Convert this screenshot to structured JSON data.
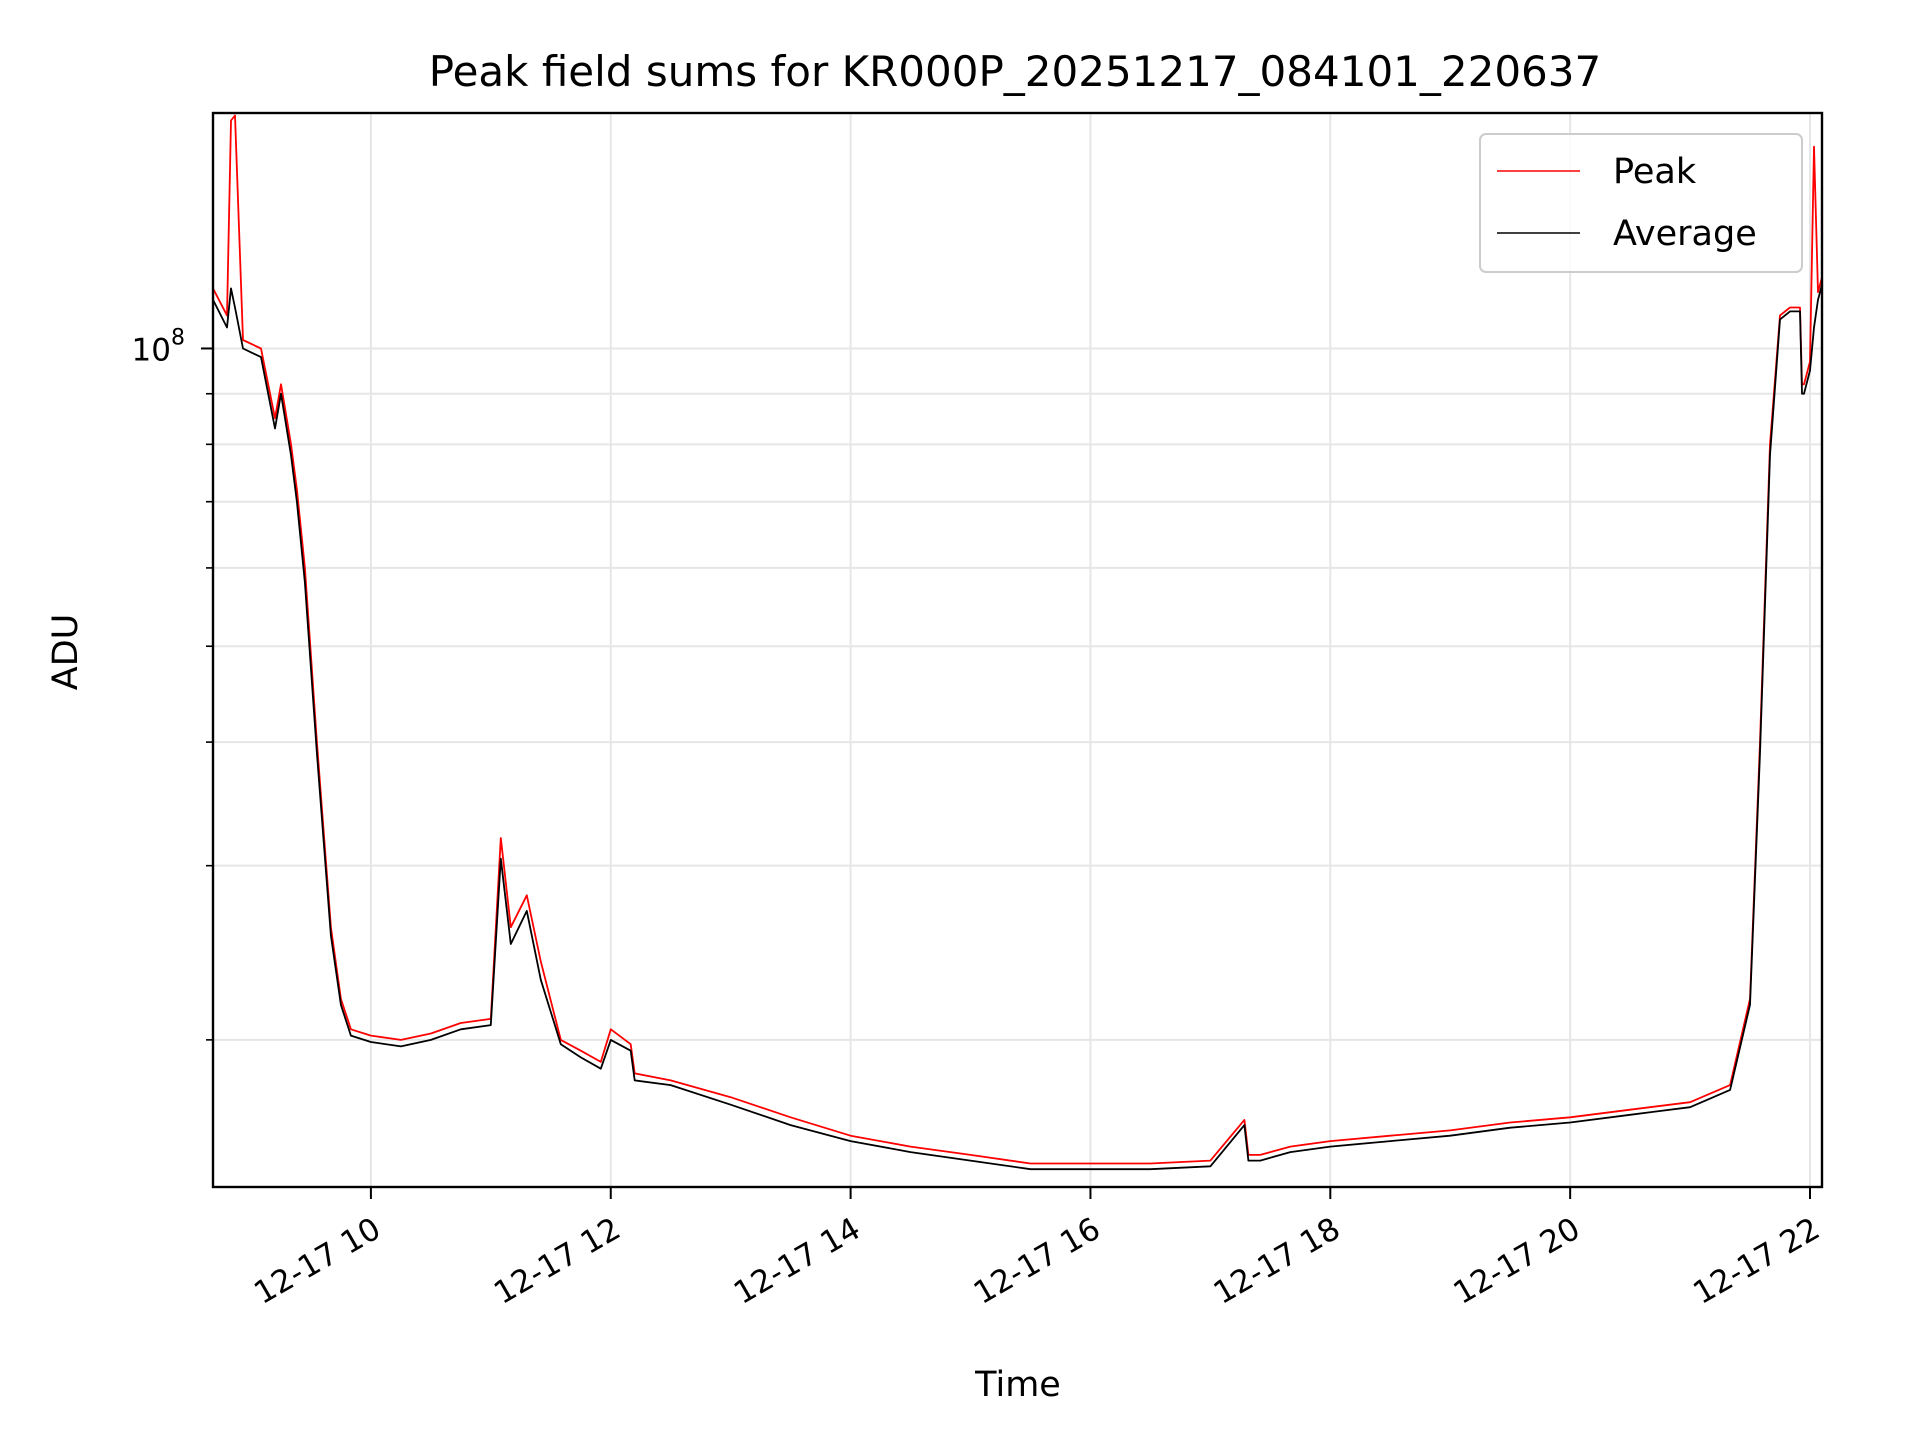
{
  "chart_data": {
    "type": "line",
    "title": "Peak field sums for KR000P_20251217_084101_220637",
    "xlabel": "Time",
    "ylabel": "ADU",
    "y_scale": "log",
    "grid": true,
    "legend_position": "top-right",
    "xlim": [
      "2025-12-17 08:41",
      "2025-12-17 22:06"
    ],
    "ylim": [
      14200000.0,
      173000000.0
    ],
    "x_ticks": [
      "2025-12-17 10:00",
      "2025-12-17 12:00",
      "2025-12-17 14:00",
      "2025-12-17 16:00",
      "2025-12-17 18:00",
      "2025-12-17 20:00",
      "2025-12-17 22:00"
    ],
    "x_tick_labels": [
      "12-17 10",
      "12-17 12",
      "12-17 14",
      "12-17 16",
      "12-17 18",
      "12-17 20",
      "12-17 22"
    ],
    "y_ticks": [
      100000000
    ],
    "y_tick_base": "10",
    "y_tick_exp": "8",
    "y_minor_ticks": [
      20000000,
      30000000,
      40000000,
      50000000,
      60000000,
      70000000,
      80000000,
      90000000
    ],
    "series": [
      {
        "name": "Peak",
        "color": "#ff0000",
        "x": [
          "2025-12-17 08:41",
          "2025-12-17 08:48",
          "2025-12-17 08:50",
          "2025-12-17 08:52",
          "2025-12-17 08:56",
          "2025-12-17 09:05",
          "2025-12-17 09:12",
          "2025-12-17 09:15",
          "2025-12-17 09:20",
          "2025-12-17 09:23",
          "2025-12-17 09:27",
          "2025-12-17 09:33",
          "2025-12-17 09:40",
          "2025-12-17 09:45",
          "2025-12-17 09:50",
          "2025-12-17 10:00",
          "2025-12-17 10:15",
          "2025-12-17 10:30",
          "2025-12-17 10:45",
          "2025-12-17 11:00",
          "2025-12-17 11:05",
          "2025-12-17 11:10",
          "2025-12-17 11:18",
          "2025-12-17 11:25",
          "2025-12-17 11:35",
          "2025-12-17 11:45",
          "2025-12-17 11:55",
          "2025-12-17 12:00",
          "2025-12-17 12:10",
          "2025-12-17 12:12",
          "2025-12-17 12:30",
          "2025-12-17 13:00",
          "2025-12-17 13:30",
          "2025-12-17 14:00",
          "2025-12-17 14:30",
          "2025-12-17 15:00",
          "2025-12-17 15:30",
          "2025-12-17 16:00",
          "2025-12-17 16:30",
          "2025-12-17 17:00",
          "2025-12-17 17:17",
          "2025-12-17 17:19",
          "2025-12-17 17:25",
          "2025-12-17 17:40",
          "2025-12-17 18:00",
          "2025-12-17 18:30",
          "2025-12-17 19:00",
          "2025-12-17 19:30",
          "2025-12-17 20:00",
          "2025-12-17 20:30",
          "2025-12-17 21:00",
          "2025-12-17 21:20",
          "2025-12-17 21:30",
          "2025-12-17 21:35",
          "2025-12-17 21:40",
          "2025-12-17 21:45",
          "2025-12-17 21:50",
          "2025-12-17 21:55",
          "2025-12-17 21:56",
          "2025-12-17 21:57",
          "2025-12-17 22:00",
          "2025-12-17 22:02",
          "2025-12-17 22:04",
          "2025-12-17 22:06"
        ],
        "values": [
          115000000,
          108000000,
          170000000,
          172000000,
          102000000,
          100000000,
          85000000,
          92000000,
          80000000,
          72000000,
          60000000,
          40000000,
          26000000,
          22000000,
          20500000,
          20200000,
          20000000,
          20300000,
          20800000,
          21000000,
          32000000,
          26000000,
          28000000,
          24000000,
          20000000,
          19500000,
          19000000,
          20500000,
          19800000,
          18500000,
          18200000,
          17500000,
          16700000,
          16000000,
          15600000,
          15300000,
          15000000,
          15000000,
          15000000,
          15100000,
          16600000,
          15300000,
          15300000,
          15600000,
          15800000,
          16000000,
          16200000,
          16500000,
          16700000,
          17000000,
          17300000,
          18000000,
          22000000,
          40000000,
          80000000,
          108000000,
          110000000,
          110000000,
          92000000,
          92000000,
          97000000,
          160000000,
          114000000,
          118000000
        ]
      },
      {
        "name": "Average",
        "color": "#000000",
        "x": [
          "2025-12-17 08:41",
          "2025-12-17 08:48",
          "2025-12-17 08:50",
          "2025-12-17 08:52",
          "2025-12-17 08:56",
          "2025-12-17 09:05",
          "2025-12-17 09:12",
          "2025-12-17 09:15",
          "2025-12-17 09:20",
          "2025-12-17 09:23",
          "2025-12-17 09:27",
          "2025-12-17 09:33",
          "2025-12-17 09:40",
          "2025-12-17 09:45",
          "2025-12-17 09:50",
          "2025-12-17 10:00",
          "2025-12-17 10:15",
          "2025-12-17 10:30",
          "2025-12-17 10:45",
          "2025-12-17 11:00",
          "2025-12-17 11:05",
          "2025-12-17 11:10",
          "2025-12-17 11:18",
          "2025-12-17 11:25",
          "2025-12-17 11:35",
          "2025-12-17 11:45",
          "2025-12-17 11:55",
          "2025-12-17 12:00",
          "2025-12-17 12:10",
          "2025-12-17 12:12",
          "2025-12-17 12:30",
          "2025-12-17 13:00",
          "2025-12-17 13:30",
          "2025-12-17 14:00",
          "2025-12-17 14:30",
          "2025-12-17 15:00",
          "2025-12-17 15:30",
          "2025-12-17 16:00",
          "2025-12-17 16:30",
          "2025-12-17 17:00",
          "2025-12-17 17:17",
          "2025-12-17 17:19",
          "2025-12-17 17:25",
          "2025-12-17 17:40",
          "2025-12-17 18:00",
          "2025-12-17 18:30",
          "2025-12-17 19:00",
          "2025-12-17 19:30",
          "2025-12-17 20:00",
          "2025-12-17 20:30",
          "2025-12-17 21:00",
          "2025-12-17 21:20",
          "2025-12-17 21:30",
          "2025-12-17 21:35",
          "2025-12-17 21:40",
          "2025-12-17 21:45",
          "2025-12-17 21:50",
          "2025-12-17 21:55",
          "2025-12-17 21:56",
          "2025-12-17 21:57",
          "2025-12-17 22:00",
          "2025-12-17 22:02",
          "2025-12-17 22:04",
          "2025-12-17 22:06"
        ],
        "values": [
          112000000,
          105000000,
          115000000,
          110000000,
          100000000,
          98000000,
          83000000,
          90000000,
          78000000,
          70000000,
          58000000,
          39000000,
          25500000,
          21700000,
          20200000,
          19900000,
          19700000,
          20000000,
          20500000,
          20700000,
          30500000,
          25000000,
          27000000,
          23000000,
          19800000,
          19200000,
          18700000,
          20000000,
          19500000,
          18200000,
          18000000,
          17200000,
          16400000,
          15800000,
          15400000,
          15100000,
          14800000,
          14800000,
          14800000,
          14900000,
          16400000,
          15100000,
          15100000,
          15400000,
          15600000,
          15800000,
          16000000,
          16300000,
          16500000,
          16800000,
          17100000,
          17800000,
          21700000,
          39000000,
          78000000,
          107000000,
          109000000,
          109000000,
          90000000,
          90000000,
          95000000,
          105000000,
          112000000,
          116000000
        ]
      }
    ]
  }
}
